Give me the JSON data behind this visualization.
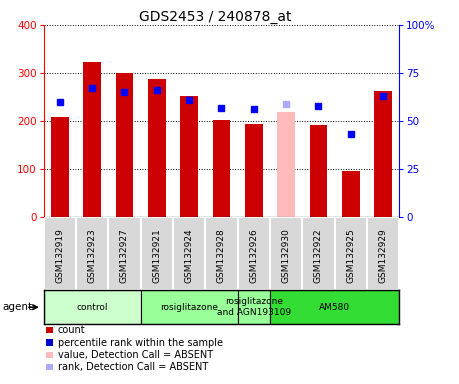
{
  "title": "GDS2453 / 240878_at",
  "samples": [
    "GSM132919",
    "GSM132923",
    "GSM132927",
    "GSM132921",
    "GSM132924",
    "GSM132928",
    "GSM132926",
    "GSM132930",
    "GSM132922",
    "GSM132925",
    "GSM132929"
  ],
  "bar_values": [
    208,
    322,
    300,
    288,
    251,
    202,
    193,
    219,
    192,
    95,
    262
  ],
  "bar_colors": [
    "#cc0000",
    "#cc0000",
    "#cc0000",
    "#cc0000",
    "#cc0000",
    "#cc0000",
    "#cc0000",
    "#ffbbbb",
    "#cc0000",
    "#cc0000",
    "#cc0000"
  ],
  "rank_values": [
    60,
    67,
    65,
    66,
    61,
    57,
    56,
    59,
    58,
    43,
    63
  ],
  "rank_colors": [
    "blue",
    "blue",
    "blue",
    "blue",
    "blue",
    "blue",
    "blue",
    "#aaaaff",
    "blue",
    "blue",
    "blue"
  ],
  "rank_absent": [
    false,
    false,
    false,
    false,
    false,
    false,
    false,
    true,
    false,
    false,
    false
  ],
  "bar_absent": [
    false,
    false,
    false,
    false,
    false,
    false,
    false,
    true,
    false,
    false,
    false
  ],
  "ylim_left": [
    0,
    400
  ],
  "ylim_right": [
    0,
    100
  ],
  "yticks_left": [
    0,
    100,
    200,
    300,
    400
  ],
  "yticks_right": [
    0,
    25,
    50,
    75,
    100
  ],
  "yticklabels_right": [
    "0",
    "25",
    "50",
    "75",
    "100%"
  ],
  "groups": [
    {
      "label": "control",
      "start": 0,
      "end": 3,
      "color": "#ccffcc"
    },
    {
      "label": "rosiglitazone",
      "start": 3,
      "end": 6,
      "color": "#99ff99"
    },
    {
      "label": "rosiglitazone\nand AGN193109",
      "start": 6,
      "end": 7,
      "color": "#99ff99"
    },
    {
      "label": "AM580",
      "start": 7,
      "end": 11,
      "color": "#33dd33"
    }
  ],
  "legend_items": [
    {
      "color": "#cc0000",
      "label": "count"
    },
    {
      "color": "#0000cc",
      "label": "percentile rank within the sample"
    },
    {
      "color": "#ffbbbb",
      "label": "value, Detection Call = ABSENT"
    },
    {
      "color": "#aaaaff",
      "label": "rank, Detection Call = ABSENT"
    }
  ]
}
